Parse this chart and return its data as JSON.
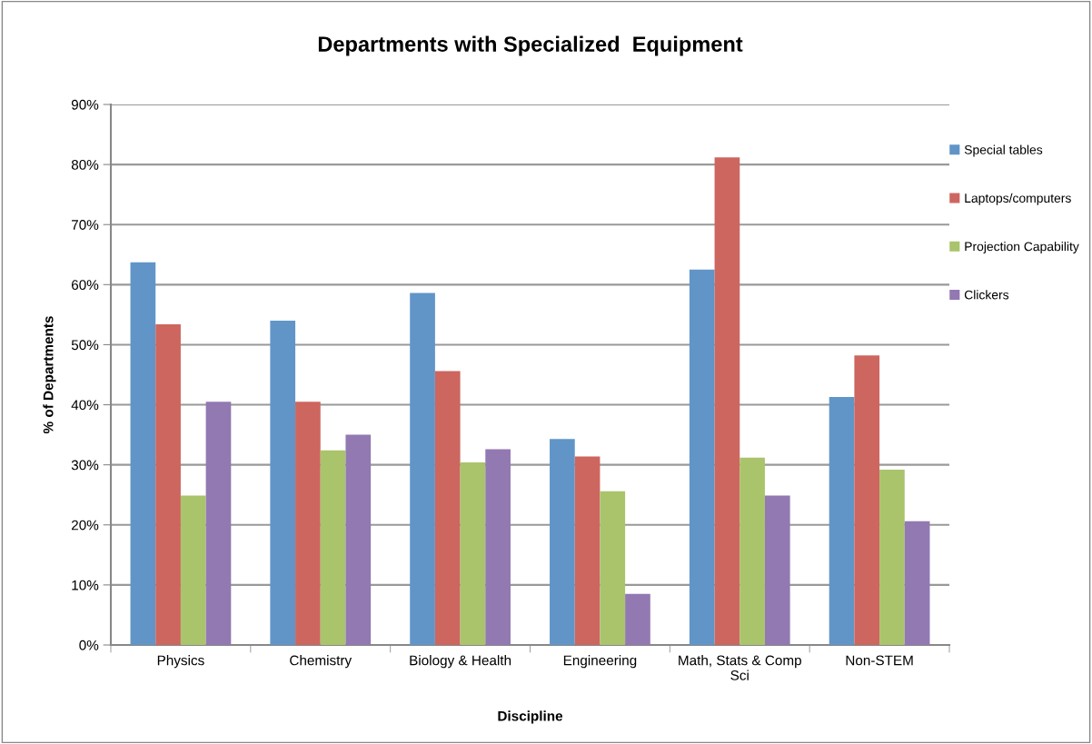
{
  "chart_data": {
    "type": "bar",
    "title": "Departments with Specialized  Equipment",
    "xlabel": "Discipline",
    "ylabel": "% of Departments",
    "categories": [
      "Physics",
      "Chemistry",
      "Biology & Health",
      "Engineering",
      "Math, Stats & Comp\nSci",
      "Non-STEM"
    ],
    "series": [
      {
        "name": "Special tables",
        "color": "#6195c8",
        "values": [
          63.7,
          54.0,
          58.6,
          34.3,
          62.5,
          41.3
        ]
      },
      {
        "name": "Laptops/computers",
        "color": "#cd665f",
        "values": [
          53.4,
          40.5,
          45.6,
          31.4,
          81.2,
          48.2
        ]
      },
      {
        "name": "Projection Capability",
        "color": "#aac46c",
        "values": [
          24.9,
          32.4,
          30.4,
          25.6,
          31.2,
          29.2
        ]
      },
      {
        "name": "Clickers",
        "color": "#9279b2",
        "values": [
          40.5,
          35.0,
          32.6,
          8.5,
          24.9,
          20.6
        ]
      }
    ],
    "ylim": [
      0,
      90
    ],
    "yticks": [
      {
        "value": 0,
        "label": "0%"
      },
      {
        "value": 10,
        "label": "10%"
      },
      {
        "value": 20,
        "label": "20%"
      },
      {
        "value": 30,
        "label": "30%"
      },
      {
        "value": 40,
        "label": "40%"
      },
      {
        "value": 50,
        "label": "50%"
      },
      {
        "value": 60,
        "label": "60%"
      },
      {
        "value": 70,
        "label": "70%"
      },
      {
        "value": 80,
        "label": "80%"
      },
      {
        "value": 90,
        "label": "90%"
      }
    ],
    "grid": "y",
    "legend": "right"
  }
}
